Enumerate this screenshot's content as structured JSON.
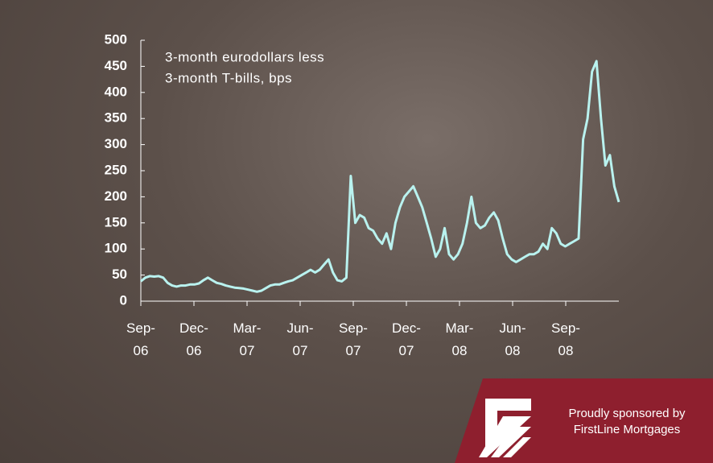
{
  "chart_data": {
    "type": "line",
    "title": "3-month eurodollars less",
    "subtitle": "3-month T-bills, bps",
    "color": "#b9f2ef",
    "xlim": [
      "2006-09",
      "2008-12"
    ],
    "xticks": [
      {
        "value": "2006-09",
        "label": "Sep-06"
      },
      {
        "value": "2006-12",
        "label": "Dec-06"
      },
      {
        "value": "2007-03",
        "label": "Mar-07"
      },
      {
        "value": "2007-06",
        "label": "Jun-07"
      },
      {
        "value": "2007-09",
        "label": "Sep-07"
      },
      {
        "value": "2007-12",
        "label": "Dec-07"
      },
      {
        "value": "2008-03",
        "label": "Mar-08"
      },
      {
        "value": "2008-06",
        "label": "Jun-08"
      },
      {
        "value": "2008-09",
        "label": "Sep-08"
      }
    ],
    "ylim": [
      0,
      500
    ],
    "yticks": [
      0,
      50,
      100,
      150,
      200,
      250,
      300,
      350,
      400,
      450,
      500
    ],
    "values": [
      38,
      45,
      48,
      47,
      48,
      45,
      35,
      30,
      28,
      30,
      30,
      32,
      32,
      34,
      40,
      45,
      40,
      35,
      33,
      30,
      28,
      26,
      25,
      24,
      22,
      20,
      18,
      20,
      25,
      30,
      32,
      32,
      35,
      38,
      40,
      45,
      50,
      55,
      60,
      55,
      60,
      70,
      80,
      55,
      40,
      38,
      45,
      240,
      150,
      165,
      160,
      140,
      135,
      120,
      110,
      130,
      100,
      150,
      180,
      200,
      210,
      220,
      200,
      180,
      150,
      120,
      85,
      100,
      140,
      90,
      80,
      90,
      110,
      150,
      200,
      150,
      140,
      145,
      160,
      170,
      155,
      120,
      90,
      80,
      75,
      80,
      85,
      90,
      90,
      95,
      110,
      100,
      140,
      130,
      110,
      105,
      110,
      115,
      120,
      310,
      350,
      440,
      460,
      350,
      260,
      280,
      220,
      190
    ]
  },
  "sponsor": {
    "line1": "Proudly sponsored by",
    "line2": "FirstLine Mortgages"
  }
}
